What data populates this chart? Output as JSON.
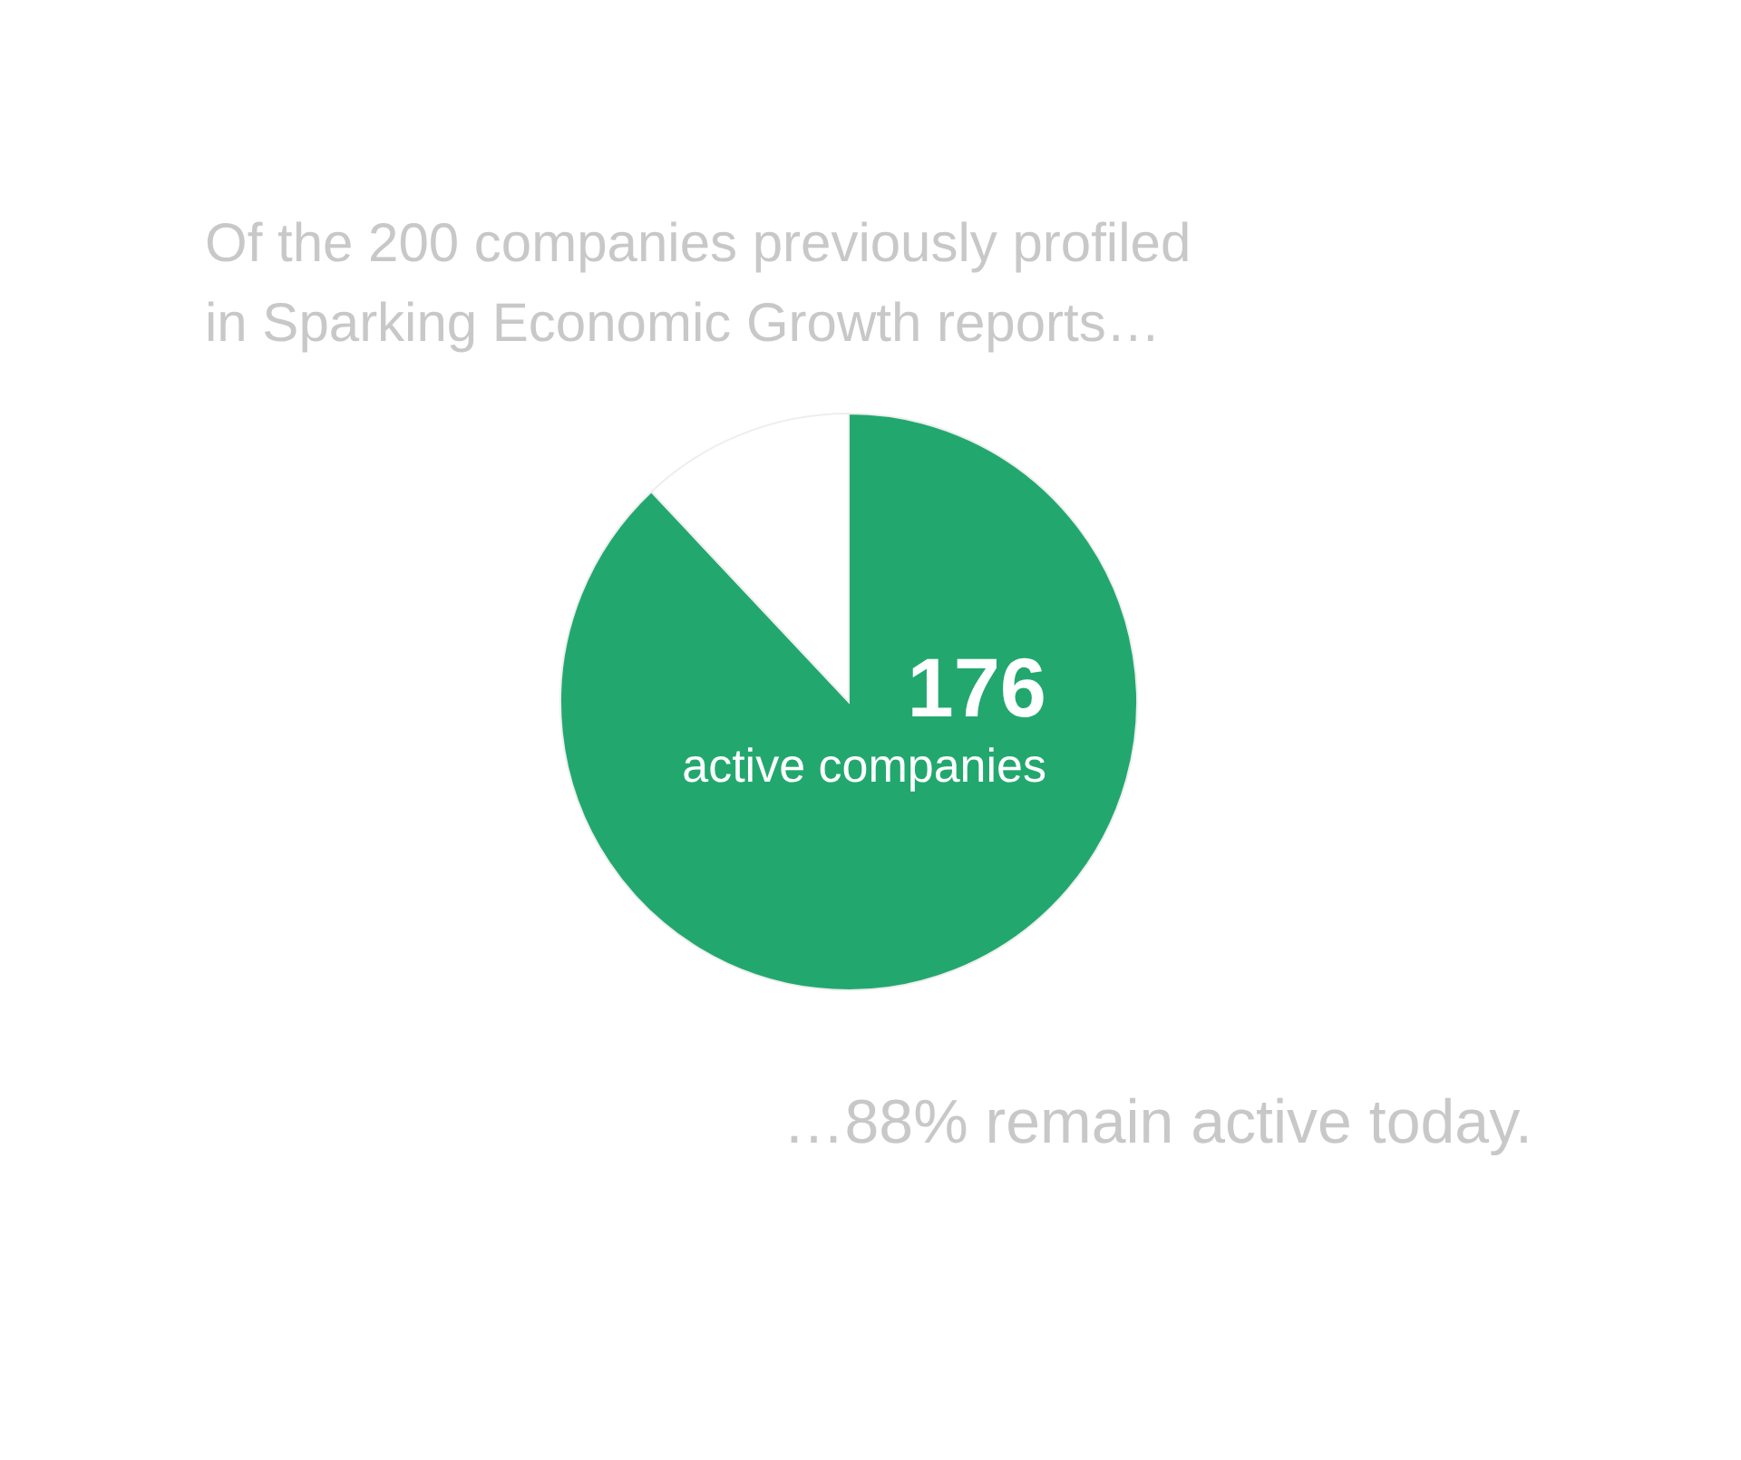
{
  "chart_data": {
    "type": "pie",
    "title": "Of the 200 companies previously profiled\nin Sparking Economic Growth reports…",
    "categories": [
      "active companies",
      null
    ],
    "values": [
      176,
      24
    ],
    "colors": [
      "#22a86e",
      "#ffffff"
    ],
    "value_labels": [
      "176",
      null
    ],
    "annotations": [
      "…88% remain active today."
    ]
  }
}
